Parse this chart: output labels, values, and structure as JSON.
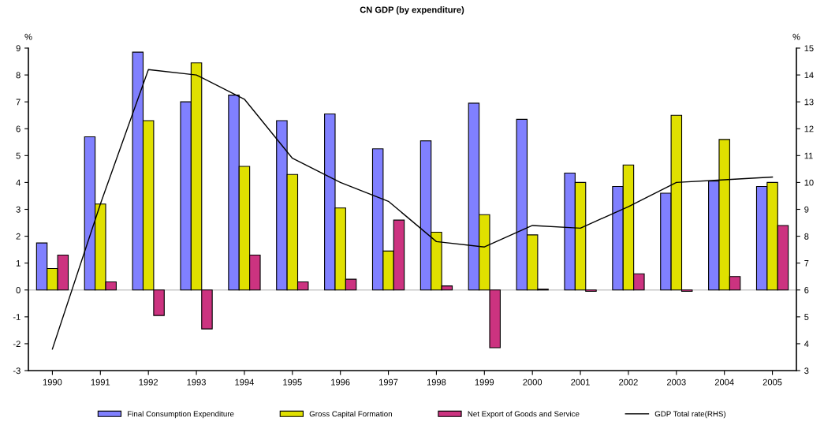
{
  "chart_data": {
    "type": "bar",
    "title": "CN GDP (by expenditure)",
    "ylabel": "%",
    "y2label": "%",
    "categories": [
      "1990",
      "1991",
      "1992",
      "1993",
      "1994",
      "1995",
      "1996",
      "1997",
      "1998",
      "1999",
      "2000",
      "2001",
      "2002",
      "2003",
      "2004",
      "2005"
    ],
    "series": [
      {
        "name": "Final Consumption Expenditure",
        "color": "#8080ff",
        "values": [
          1.75,
          5.7,
          8.85,
          7.0,
          7.25,
          6.3,
          6.55,
          5.25,
          5.55,
          6.95,
          6.35,
          4.35,
          3.85,
          3.6,
          4.05,
          3.85
        ]
      },
      {
        "name": "Gross Capital Formation",
        "color": "#e0e000",
        "values": [
          0.8,
          3.2,
          6.3,
          8.45,
          4.6,
          4.3,
          3.05,
          1.45,
          2.15,
          2.8,
          2.05,
          4.0,
          4.65,
          6.5,
          5.6,
          4.0
        ]
      },
      {
        "name": "Net Export of Goods and Service",
        "color": "#cc3380",
        "values": [
          1.3,
          0.3,
          -0.95,
          -1.45,
          1.3,
          0.3,
          0.4,
          2.6,
          0.15,
          -2.15,
          0.03,
          -0.05,
          0.6,
          -0.05,
          0.5,
          2.4
        ]
      },
      {
        "name": "GDP Total rate(RHS)",
        "type": "line",
        "axis": "y2",
        "color": "#000000",
        "values": [
          3.8,
          9.2,
          14.2,
          14.0,
          13.1,
          10.9,
          10.0,
          9.3,
          7.8,
          7.6,
          8.4,
          8.3,
          9.1,
          10.0,
          10.1,
          10.2
        ]
      }
    ],
    "ylim": [
      -3,
      9
    ],
    "yticks": [
      -3,
      -2,
      -1,
      0,
      1,
      2,
      3,
      4,
      5,
      6,
      7,
      8,
      9
    ],
    "y2lim": [
      3,
      15
    ],
    "y2ticks": [
      3,
      4,
      5,
      6,
      7,
      8,
      9,
      10,
      11,
      12,
      13,
      14,
      15
    ],
    "ref_lines": [
      {
        "axis": "y",
        "value": 0,
        "color": "#c8c8c8"
      }
    ],
    "grid": false,
    "legend": "bottom",
    "marker": "none",
    "line_style": "solid"
  }
}
